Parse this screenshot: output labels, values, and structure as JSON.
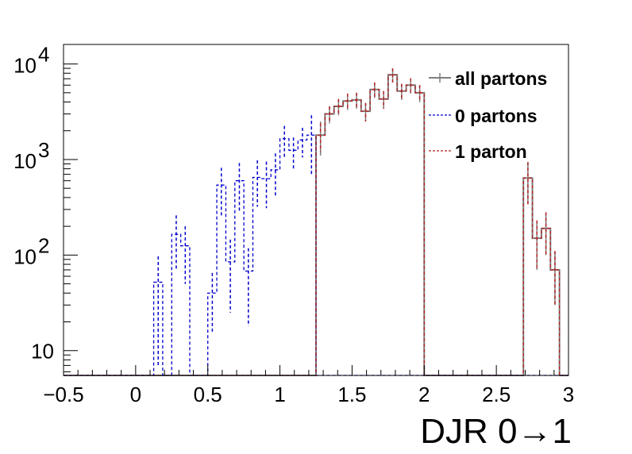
{
  "chart_data": {
    "type": "histogram-step",
    "xlabel": "DJR 0→1",
    "ylabel": "",
    "title": "",
    "xlim": [
      -0.5,
      3.0
    ],
    "ylim": [
      5.5,
      16000
    ],
    "yscale": "log",
    "grid": false,
    "legend_position": "top-right",
    "bin_width": 0.0625,
    "x_ticks": [
      {
        "value": -0.5,
        "label": "−0.5"
      },
      {
        "value": 0,
        "label": "0"
      },
      {
        "value": 0.5,
        "label": "0.5"
      },
      {
        "value": 1,
        "label": "1"
      },
      {
        "value": 1.5,
        "label": "1.5"
      },
      {
        "value": 2,
        "label": "2"
      },
      {
        "value": 2.5,
        "label": "2.5"
      },
      {
        "value": 3,
        "label": "3"
      }
    ],
    "y_ticks": [
      {
        "value": 10,
        "label": "10"
      },
      {
        "value": 100,
        "label": "10",
        "exp": "2"
      },
      {
        "value": 1000,
        "label": "10",
        "exp": "3"
      },
      {
        "value": 10000,
        "label": "10",
        "exp": "4"
      }
    ],
    "series": [
      {
        "name": "all partons",
        "color": "#7f7f7f",
        "style": "solid",
        "bins": [
          {
            "x": 1.25,
            "y": 1800,
            "err": 700
          },
          {
            "x": 1.3125,
            "y": 3000,
            "err": 600
          },
          {
            "x": 1.375,
            "y": 3600,
            "err": 700
          },
          {
            "x": 1.4375,
            "y": 4100,
            "err": 800
          },
          {
            "x": 1.5,
            "y": 4200,
            "err": 800
          },
          {
            "x": 1.5625,
            "y": 3200,
            "err": 700
          },
          {
            "x": 1.625,
            "y": 5400,
            "err": 1000
          },
          {
            "x": 1.6875,
            "y": 4300,
            "err": 900
          },
          {
            "x": 1.75,
            "y": 7700,
            "err": 1300
          },
          {
            "x": 1.8125,
            "y": 5200,
            "err": 1000
          },
          {
            "x": 1.875,
            "y": 6000,
            "err": 1100
          },
          {
            "x": 1.9375,
            "y": 5000,
            "err": 1000
          },
          {
            "x": 2.6875,
            "y": 640,
            "err": 300
          },
          {
            "x": 2.75,
            "y": 150,
            "err": 80
          },
          {
            "x": 2.8125,
            "y": 190,
            "err": 90
          },
          {
            "x": 2.875,
            "y": 70,
            "err": 40
          }
        ]
      },
      {
        "name": "0 partons",
        "color": "#0000cc",
        "style": "dashed",
        "bins": [
          {
            "x": 0.125,
            "y": 52,
            "err": 45
          },
          {
            "x": 0.25,
            "y": 165,
            "err": 95
          },
          {
            "x": 0.3125,
            "y": 125,
            "err": 75
          },
          {
            "x": 0.5,
            "y": 40,
            "err": 25
          },
          {
            "x": 0.5625,
            "y": 540,
            "err": 280
          },
          {
            "x": 0.625,
            "y": 85,
            "err": 60
          },
          {
            "x": 0.6875,
            "y": 600,
            "err": 320
          },
          {
            "x": 0.75,
            "y": 68,
            "err": 50
          },
          {
            "x": 0.8125,
            "y": 650,
            "err": 330
          },
          {
            "x": 0.875,
            "y": 630,
            "err": 320
          },
          {
            "x": 0.9375,
            "y": 780,
            "err": 380
          },
          {
            "x": 1.0,
            "y": 1650,
            "err": 600
          },
          {
            "x": 1.0625,
            "y": 1250,
            "err": 450
          },
          {
            "x": 1.125,
            "y": 1600,
            "err": 550
          },
          {
            "x": 1.1875,
            "y": 1800,
            "err": 1100
          }
        ]
      },
      {
        "name": "1 parton",
        "color": "#b22222",
        "style": "dashed",
        "bins": [
          {
            "x": 1.25,
            "y": 1800,
            "err": 600
          },
          {
            "x": 1.3125,
            "y": 3000,
            "err": 600
          },
          {
            "x": 1.375,
            "y": 3600,
            "err": 700
          },
          {
            "x": 1.4375,
            "y": 4100,
            "err": 800
          },
          {
            "x": 1.5,
            "y": 4200,
            "err": 800
          },
          {
            "x": 1.5625,
            "y": 3200,
            "err": 700
          },
          {
            "x": 1.625,
            "y": 5400,
            "err": 1000
          },
          {
            "x": 1.6875,
            "y": 4300,
            "err": 900
          },
          {
            "x": 1.75,
            "y": 7700,
            "err": 1300
          },
          {
            "x": 1.8125,
            "y": 5200,
            "err": 1000
          },
          {
            "x": 1.875,
            "y": 6000,
            "err": 1100
          },
          {
            "x": 1.9375,
            "y": 5000,
            "err": 1000
          },
          {
            "x": 2.6875,
            "y": 640,
            "err": 300
          },
          {
            "x": 2.75,
            "y": 150,
            "err": 80
          },
          {
            "x": 2.8125,
            "y": 190,
            "err": 90
          },
          {
            "x": 2.875,
            "y": 70,
            "err": 40
          }
        ]
      }
    ]
  }
}
